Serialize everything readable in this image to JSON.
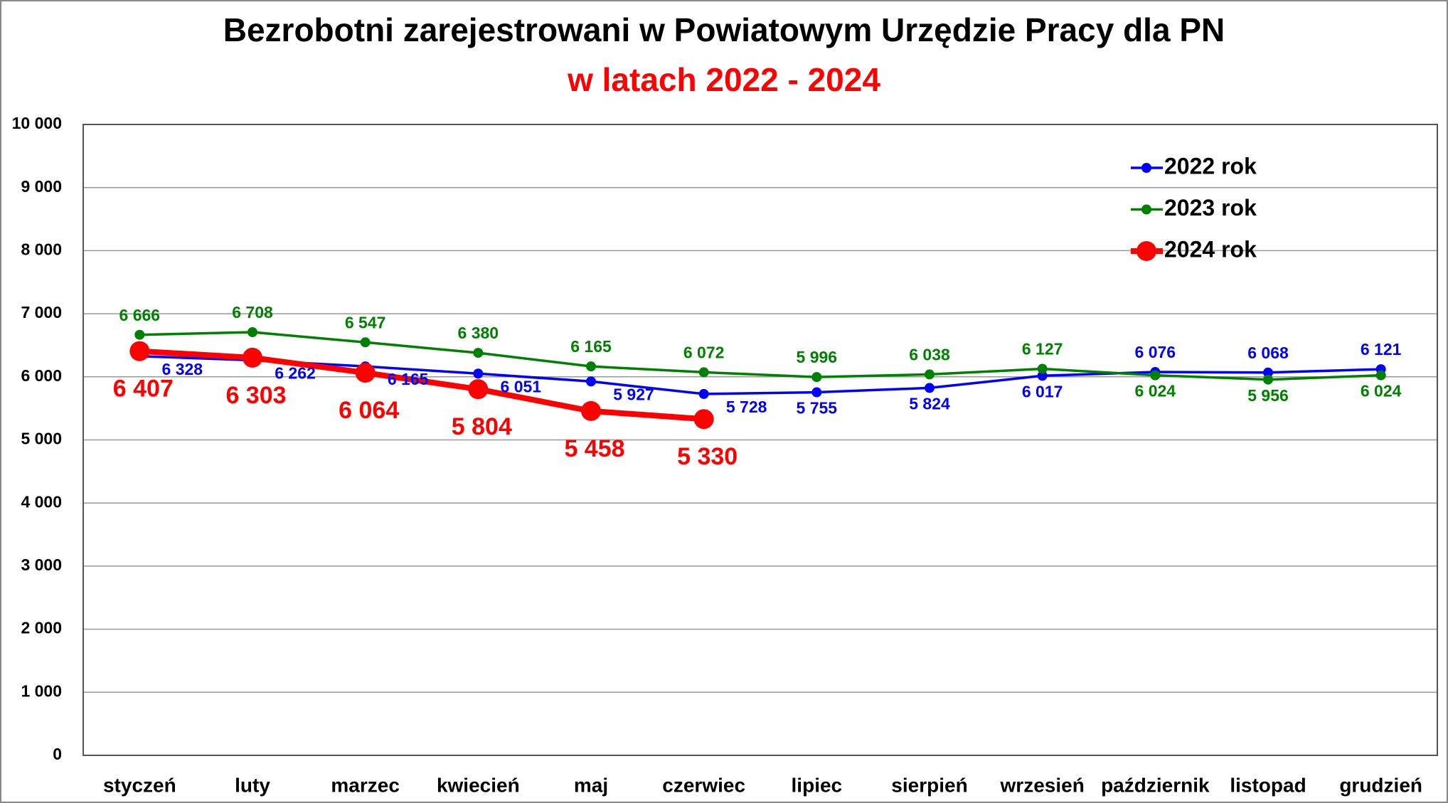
{
  "chart_data": {
    "type": "line",
    "title": "Bezrobotni zarejestrowani w Powiatowym Urzędzie Pracy dla PN",
    "subtitle": "w latach 2022 - 2024",
    "categories": [
      "styczeń",
      "luty",
      "marzec",
      "kwiecień",
      "maj",
      "czerwiec",
      "lipiec",
      "sierpień",
      "wrzesień",
      "październik",
      "listopad",
      "grudzień"
    ],
    "series": [
      {
        "name": "2022 rok",
        "color": "#0000ff",
        "values": [
          6328,
          6262,
          6165,
          6051,
          5927,
          5728,
          5755,
          5824,
          6017,
          6076,
          6068,
          6121
        ],
        "value_labels": [
          "6 328",
          "6 262",
          "6 165",
          "6 051",
          "5 927",
          "5 728",
          "5 755",
          "5 824",
          "6 017",
          "6 076",
          "6 068",
          "6 121"
        ]
      },
      {
        "name": "2023 rok",
        "color": "#008000",
        "values": [
          6666,
          6708,
          6547,
          6380,
          6165,
          6072,
          5996,
          6038,
          6127,
          6024,
          5956,
          6024
        ],
        "value_labels": [
          "6 666",
          "6 708",
          "6 547",
          "6 380",
          "6 165",
          "6 072",
          "5 996",
          "6 038",
          "6 127",
          "6 024",
          "5 956",
          "6 024"
        ]
      },
      {
        "name": "2024 rok",
        "color": "#ff0000",
        "values": [
          6407,
          6303,
          6064,
          5804,
          5458,
          5330,
          null,
          null,
          null,
          null,
          null,
          null
        ],
        "value_labels": [
          "6 407",
          "6 303",
          "6 064",
          "5 804",
          "5 458",
          "5 330",
          null,
          null,
          null,
          null,
          null,
          null
        ]
      }
    ],
    "ylim": [
      0,
      10000
    ],
    "yticks": [
      {
        "value": 0,
        "label": "0"
      },
      {
        "value": 1000,
        "label": "1 000"
      },
      {
        "value": 2000,
        "label": "2 000"
      },
      {
        "value": 3000,
        "label": "3 000"
      },
      {
        "value": 4000,
        "label": "4 000"
      },
      {
        "value": 5000,
        "label": "5 000"
      },
      {
        "value": 6000,
        "label": "6 000"
      },
      {
        "value": 7000,
        "label": "7 000"
      },
      {
        "value": 8000,
        "label": "8 000"
      },
      {
        "value": 9000,
        "label": "9 000"
      },
      {
        "value": 10000,
        "label": "10 000"
      }
    ],
    "grid": true,
    "legend": "upper right"
  }
}
